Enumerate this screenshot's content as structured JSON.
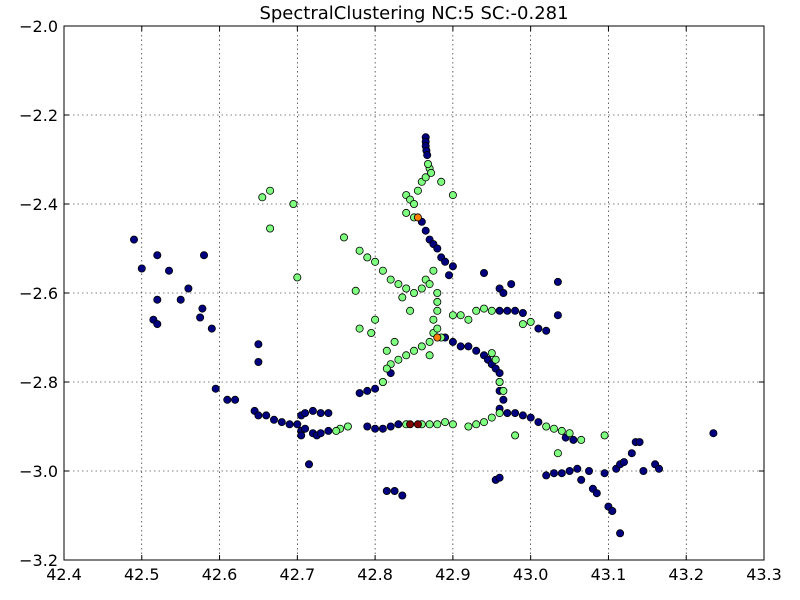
{
  "chart_data": {
    "type": "scatter",
    "title": "SpectralClustering NC:5 SC:-0.281",
    "xlabel": "",
    "ylabel": "",
    "xlim": [
      42.4,
      43.3
    ],
    "ylim": [
      -3.2,
      -2.0
    ],
    "xticks": [
      "42.4",
      "42.5",
      "42.6",
      "42.7",
      "42.8",
      "42.9",
      "43.0",
      "43.1",
      "43.2",
      "43.3"
    ],
    "yticks": [
      "−2.0",
      "−2.2",
      "−2.4",
      "−2.6",
      "−2.8",
      "−3.0",
      "−3.2"
    ],
    "grid": true,
    "colors": {
      "c0": "#00007f",
      "c1": "#7fff7f",
      "c2": "#ff7f00",
      "c3": "#7f0000"
    },
    "series": [
      {
        "color_key": "c0",
        "points": [
          [
            42.49,
            -2.48
          ],
          [
            42.5,
            -2.545
          ],
          [
            42.52,
            -2.515
          ],
          [
            42.535,
            -2.55
          ],
          [
            42.52,
            -2.615
          ],
          [
            42.55,
            -2.615
          ],
          [
            42.56,
            -2.59
          ],
          [
            42.58,
            -2.515
          ],
          [
            42.515,
            -2.66
          ],
          [
            42.52,
            -2.67
          ],
          [
            42.575,
            -2.655
          ],
          [
            42.578,
            -2.635
          ],
          [
            42.59,
            -2.68
          ],
          [
            42.595,
            -2.815
          ],
          [
            42.61,
            -2.84
          ],
          [
            42.62,
            -2.84
          ],
          [
            42.65,
            -2.715
          ],
          [
            42.65,
            -2.755
          ],
          [
            42.645,
            -2.865
          ],
          [
            42.65,
            -2.875
          ],
          [
            42.66,
            -2.875
          ],
          [
            42.67,
            -2.885
          ],
          [
            42.68,
            -2.89
          ],
          [
            42.69,
            -2.895
          ],
          [
            42.7,
            -2.895
          ],
          [
            42.705,
            -2.91
          ],
          [
            42.705,
            -2.92
          ],
          [
            42.71,
            -2.905
          ],
          [
            42.72,
            -2.915
          ],
          [
            42.725,
            -2.92
          ],
          [
            42.73,
            -2.915
          ],
          [
            42.74,
            -2.91
          ],
          [
            42.705,
            -2.875
          ],
          [
            42.71,
            -2.87
          ],
          [
            42.72,
            -2.865
          ],
          [
            42.73,
            -2.87
          ],
          [
            42.74,
            -2.87
          ],
          [
            42.715,
            -2.985
          ],
          [
            42.79,
            -2.9
          ],
          [
            42.8,
            -2.905
          ],
          [
            42.81,
            -2.905
          ],
          [
            42.82,
            -2.9
          ],
          [
            42.83,
            -2.895
          ],
          [
            42.835,
            -3.055
          ],
          [
            42.815,
            -3.045
          ],
          [
            42.825,
            -3.045
          ],
          [
            42.78,
            -2.825
          ],
          [
            42.79,
            -2.82
          ],
          [
            42.8,
            -2.815
          ],
          [
            42.81,
            -2.8
          ],
          [
            42.82,
            -2.78
          ],
          [
            42.865,
            -2.25
          ],
          [
            42.865,
            -2.26
          ],
          [
            42.865,
            -2.27
          ],
          [
            42.866,
            -2.28
          ],
          [
            42.867,
            -2.29
          ],
          [
            42.86,
            -2.44
          ],
          [
            42.865,
            -2.46
          ],
          [
            42.87,
            -2.48
          ],
          [
            42.875,
            -2.49
          ],
          [
            42.88,
            -2.5
          ],
          [
            42.885,
            -2.52
          ],
          [
            42.89,
            -2.53
          ],
          [
            42.895,
            -2.56
          ],
          [
            42.9,
            -2.54
          ],
          [
            42.89,
            -2.7
          ],
          [
            42.9,
            -2.71
          ],
          [
            42.91,
            -2.72
          ],
          [
            42.92,
            -2.72
          ],
          [
            42.93,
            -2.73
          ],
          [
            42.94,
            -2.74
          ],
          [
            42.945,
            -2.75
          ],
          [
            42.95,
            -2.76
          ],
          [
            42.955,
            -2.77
          ],
          [
            42.96,
            -2.78
          ],
          [
            42.96,
            -2.8
          ],
          [
            42.96,
            -2.82
          ],
          [
            42.965,
            -2.84
          ],
          [
            42.96,
            -2.86
          ],
          [
            42.97,
            -2.87
          ],
          [
            42.98,
            -2.87
          ],
          [
            42.99,
            -2.875
          ],
          [
            43.0,
            -2.88
          ],
          [
            43.01,
            -2.89
          ],
          [
            42.96,
            -2.64
          ],
          [
            42.97,
            -2.64
          ],
          [
            42.98,
            -2.64
          ],
          [
            42.99,
            -2.645
          ],
          [
            43.01,
            -2.68
          ],
          [
            43.02,
            -2.685
          ],
          [
            43.035,
            -2.575
          ],
          [
            43.035,
            -2.65
          ],
          [
            42.94,
            -2.555
          ],
          [
            42.96,
            -2.59
          ],
          [
            42.965,
            -2.6
          ],
          [
            42.975,
            -2.58
          ],
          [
            42.955,
            -3.02
          ],
          [
            42.96,
            -3.015
          ],
          [
            43.02,
            -3.01
          ],
          [
            43.03,
            -3.005
          ],
          [
            43.04,
            -3.005
          ],
          [
            43.05,
            -3.0
          ],
          [
            43.06,
            -2.995
          ],
          [
            43.065,
            -3.02
          ],
          [
            43.075,
            -3.0
          ],
          [
            43.08,
            -3.04
          ],
          [
            43.085,
            -3.05
          ],
          [
            43.095,
            -3.005
          ],
          [
            43.1,
            -3.08
          ],
          [
            43.105,
            -3.09
          ],
          [
            43.11,
            -2.995
          ],
          [
            43.115,
            -2.985
          ],
          [
            43.12,
            -2.98
          ],
          [
            43.13,
            -2.96
          ],
          [
            43.135,
            -2.935
          ],
          [
            43.14,
            -2.935
          ],
          [
            43.145,
            -3.0
          ],
          [
            43.115,
            -3.14
          ],
          [
            43.16,
            -2.985
          ],
          [
            43.165,
            -2.995
          ],
          [
            43.235,
            -2.915
          ],
          [
            43.055,
            -2.93
          ],
          [
            43.045,
            -2.925
          ]
        ]
      },
      {
        "color_key": "c1",
        "points": [
          [
            42.655,
            -2.385
          ],
          [
            42.665,
            -2.37
          ],
          [
            42.695,
            -2.4
          ],
          [
            42.665,
            -2.455
          ],
          [
            42.7,
            -2.565
          ],
          [
            42.76,
            -2.475
          ],
          [
            42.775,
            -2.595
          ],
          [
            42.78,
            -2.505
          ],
          [
            42.79,
            -2.52
          ],
          [
            42.8,
            -2.53
          ],
          [
            42.81,
            -2.55
          ],
          [
            42.82,
            -2.57
          ],
          [
            42.83,
            -2.58
          ],
          [
            42.84,
            -2.59
          ],
          [
            42.835,
            -2.61
          ],
          [
            42.8,
            -2.66
          ],
          [
            42.78,
            -2.68
          ],
          [
            42.795,
            -2.69
          ],
          [
            42.845,
            -2.64
          ],
          [
            42.85,
            -2.6
          ],
          [
            42.86,
            -2.59
          ],
          [
            42.865,
            -2.57
          ],
          [
            42.87,
            -2.58
          ],
          [
            42.875,
            -2.55
          ],
          [
            42.88,
            -2.6
          ],
          [
            42.88,
            -2.62
          ],
          [
            42.88,
            -2.64
          ],
          [
            42.875,
            -2.66
          ],
          [
            42.875,
            -2.69
          ],
          [
            42.87,
            -2.71
          ],
          [
            42.86,
            -2.72
          ],
          [
            42.85,
            -2.73
          ],
          [
            42.84,
            -2.74
          ],
          [
            42.83,
            -2.75
          ],
          [
            42.82,
            -2.76
          ],
          [
            42.815,
            -2.77
          ],
          [
            42.81,
            -2.8
          ],
          [
            42.815,
            -2.73
          ],
          [
            42.825,
            -2.71
          ],
          [
            42.87,
            -2.74
          ],
          [
            42.88,
            -2.68
          ],
          [
            42.885,
            -2.7
          ],
          [
            42.9,
            -2.65
          ],
          [
            42.91,
            -2.65
          ],
          [
            42.92,
            -2.66
          ],
          [
            42.93,
            -2.64
          ],
          [
            42.94,
            -2.635
          ],
          [
            42.95,
            -2.64
          ],
          [
            42.9,
            -2.38
          ],
          [
            42.885,
            -2.35
          ],
          [
            42.84,
            -2.38
          ],
          [
            42.845,
            -2.39
          ],
          [
            42.85,
            -2.4
          ],
          [
            42.855,
            -2.37
          ],
          [
            42.86,
            -2.35
          ],
          [
            42.865,
            -2.34
          ],
          [
            42.87,
            -2.32
          ],
          [
            42.868,
            -2.31
          ],
          [
            42.872,
            -2.33
          ],
          [
            42.84,
            -2.42
          ],
          [
            42.85,
            -2.43
          ],
          [
            42.9,
            -2.895
          ],
          [
            42.89,
            -2.89
          ],
          [
            42.88,
            -2.895
          ],
          [
            42.87,
            -2.895
          ],
          [
            42.86,
            -2.895
          ],
          [
            42.765,
            -2.9
          ],
          [
            42.755,
            -2.905
          ],
          [
            42.75,
            -2.91
          ],
          [
            42.84,
            -2.895
          ],
          [
            42.92,
            -2.9
          ],
          [
            42.93,
            -2.895
          ],
          [
            42.94,
            -2.89
          ],
          [
            42.95,
            -2.88
          ],
          [
            42.96,
            -2.87
          ],
          [
            42.99,
            -2.67
          ],
          [
            43.0,
            -2.665
          ],
          [
            42.98,
            -2.92
          ],
          [
            43.02,
            -2.9
          ],
          [
            43.03,
            -2.905
          ],
          [
            43.04,
            -2.91
          ],
          [
            43.05,
            -2.915
          ],
          [
            43.035,
            -2.96
          ],
          [
            43.095,
            -2.92
          ],
          [
            43.065,
            -2.93
          ],
          [
            42.96,
            -2.8
          ],
          [
            42.955,
            -2.75
          ],
          [
            42.95,
            -2.735
          ],
          [
            42.965,
            -2.82
          ]
        ]
      },
      {
        "color_key": "c2",
        "points": [
          [
            42.855,
            -2.43
          ],
          [
            42.88,
            -2.7
          ]
        ]
      },
      {
        "color_key": "c3",
        "points": [
          [
            42.845,
            -2.895
          ],
          [
            42.855,
            -2.895
          ]
        ]
      }
    ]
  }
}
